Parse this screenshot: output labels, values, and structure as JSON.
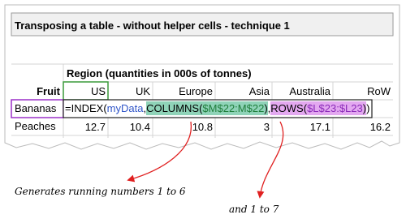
{
  "title": "Transposing a table - without helper cells - technique 1",
  "table": {
    "region_label": "Region (quantities in 000s of tonnes)",
    "header": [
      "Fruit",
      "US",
      "UK",
      "Europe",
      "Asia",
      "Australia",
      "RoW"
    ],
    "rows": [
      {
        "label": "Bananas",
        "formula": [
          "=INDEX(",
          "myData",
          ",",
          "COLUMNS(",
          "$M$22:M$22",
          ")",
          ",",
          "ROWS(",
          "$L$23:$L23",
          ")",
          ")"
        ]
      },
      {
        "label": "Peaches",
        "values": [
          12.7,
          10.4,
          10.8,
          3,
          17.1,
          16.2
        ]
      }
    ]
  },
  "annotations": [
    "Generates running numbers 1 to 6",
    "and 1 to 7"
  ]
}
